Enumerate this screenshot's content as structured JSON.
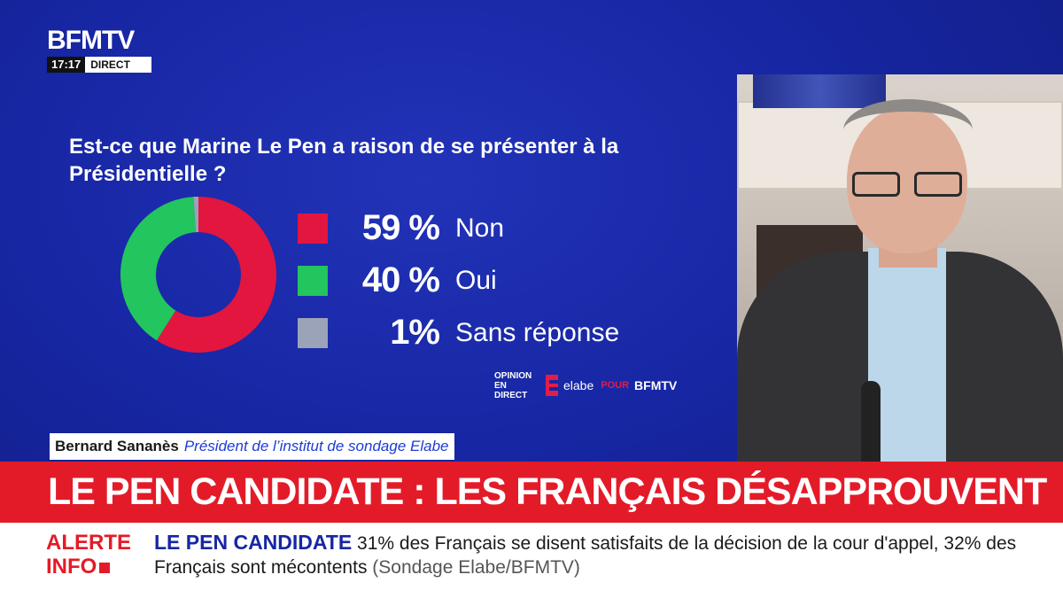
{
  "channel": {
    "logo": "BFMTV",
    "time": "17:17",
    "live_label": "DIRECT"
  },
  "chart_data": {
    "type": "pie",
    "title": "Est-ce que Marine Le Pen a raison de se présenter à la Présidentielle ?",
    "slices": [
      {
        "label": "Non",
        "value": 59,
        "display": "59 %",
        "color": "#e3163f"
      },
      {
        "label": "Oui",
        "value": 40,
        "display": "40 %",
        "color": "#22c55e"
      },
      {
        "label": "Sans réponse",
        "value": 1,
        "display": "1%",
        "color": "#9aa3b8"
      }
    ]
  },
  "sources": {
    "opinion": "OPINION EN DIRECT",
    "elabe": "elabe",
    "pour": "POUR",
    "bfmtv": "BFMTV"
  },
  "speaker": {
    "name": "Bernard Sananès",
    "role": "Président de l’institut de sondage Elabe"
  },
  "headline": "LE PEN CANDIDATE : LES FRANÇAIS DÉSAPPROUVENT",
  "ticker": {
    "alert_label_1": "ALERTE",
    "alert_label_2": "INFO",
    "title": "LE PEN CANDIDATE",
    "text": "31% des Français se disent satisfaits de la décision de la cour d'appel, 32% des Français sont mécontents",
    "source": "(Sondage Elabe/BFMTV)"
  }
}
